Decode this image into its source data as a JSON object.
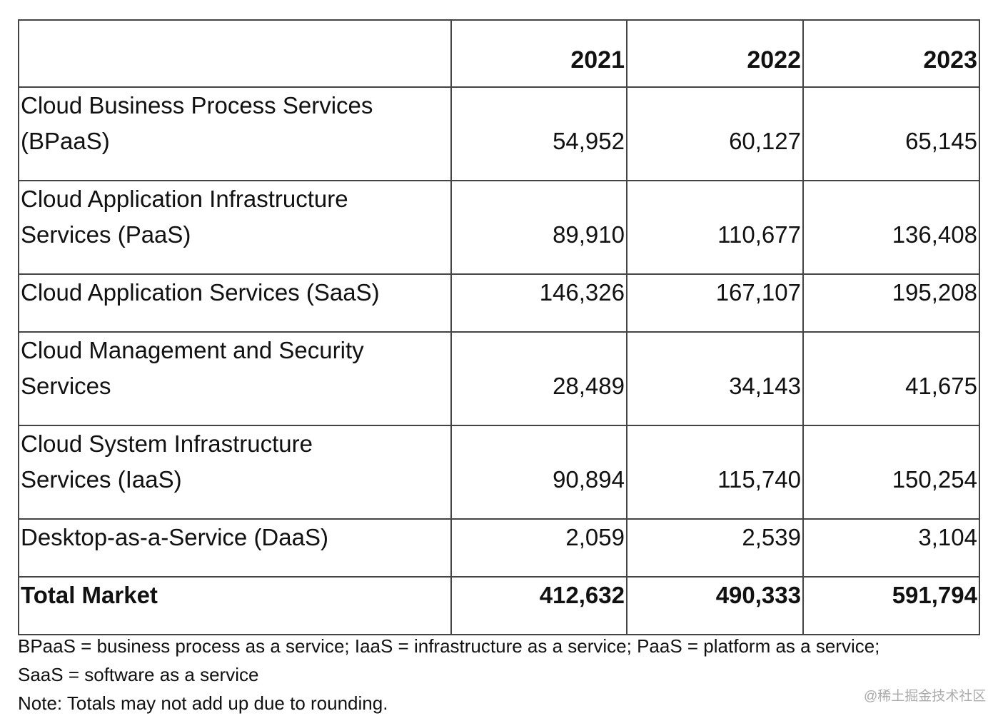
{
  "table": {
    "header": [
      "2021",
      "2022",
      "2023"
    ],
    "rows": [
      {
        "label": [
          "Cloud Business Process Services",
          "(BPaaS)"
        ],
        "values": [
          "54,952",
          "60,127",
          "65,145"
        ]
      },
      {
        "label": [
          "Cloud Application Infrastructure",
          "Services (PaaS)"
        ],
        "values": [
          "89,910",
          "110,677",
          "136,408"
        ]
      },
      {
        "label": [
          "Cloud Application Services (SaaS)"
        ],
        "values": [
          "146,326",
          "167,107",
          "195,208"
        ]
      },
      {
        "label": [
          "Cloud Management and Security",
          "Services"
        ],
        "values": [
          "28,489",
          "34,143",
          "41,675"
        ]
      },
      {
        "label": [
          "Cloud System Infrastructure",
          "Services (IaaS)"
        ],
        "values": [
          "90,894",
          "115,740",
          "150,254"
        ]
      },
      {
        "label": [
          "Desktop-as-a-Service (DaaS)"
        ],
        "values": [
          "2,059",
          "2,539",
          "3,104"
        ]
      }
    ],
    "total": {
      "label": "Total Market",
      "values": [
        "412,632",
        "490,333",
        "591,794"
      ]
    }
  },
  "notes": [
    "BPaaS = business process as a service; IaaS = infrastructure as a service; PaaS = platform as a service;",
    "SaaS = software as a service",
    "Note: Totals may not add up due to rounding."
  ],
  "watermark": "@稀土掘金技术社区"
}
